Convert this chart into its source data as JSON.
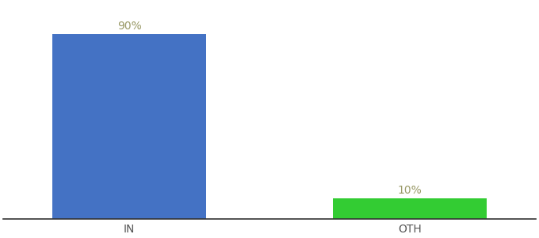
{
  "categories": [
    "IN",
    "OTH"
  ],
  "values": [
    90,
    10
  ],
  "bar_colors": [
    "#4472c4",
    "#33cc33"
  ],
  "label_texts": [
    "90%",
    "10%"
  ],
  "ylim": [
    0,
    105
  ],
  "background_color": "#ffffff",
  "label_fontsize": 10,
  "tick_fontsize": 10,
  "label_color": "#999966",
  "tick_color": "#555555",
  "bar_width": 0.55,
  "xlim": [
    -0.45,
    1.45
  ]
}
